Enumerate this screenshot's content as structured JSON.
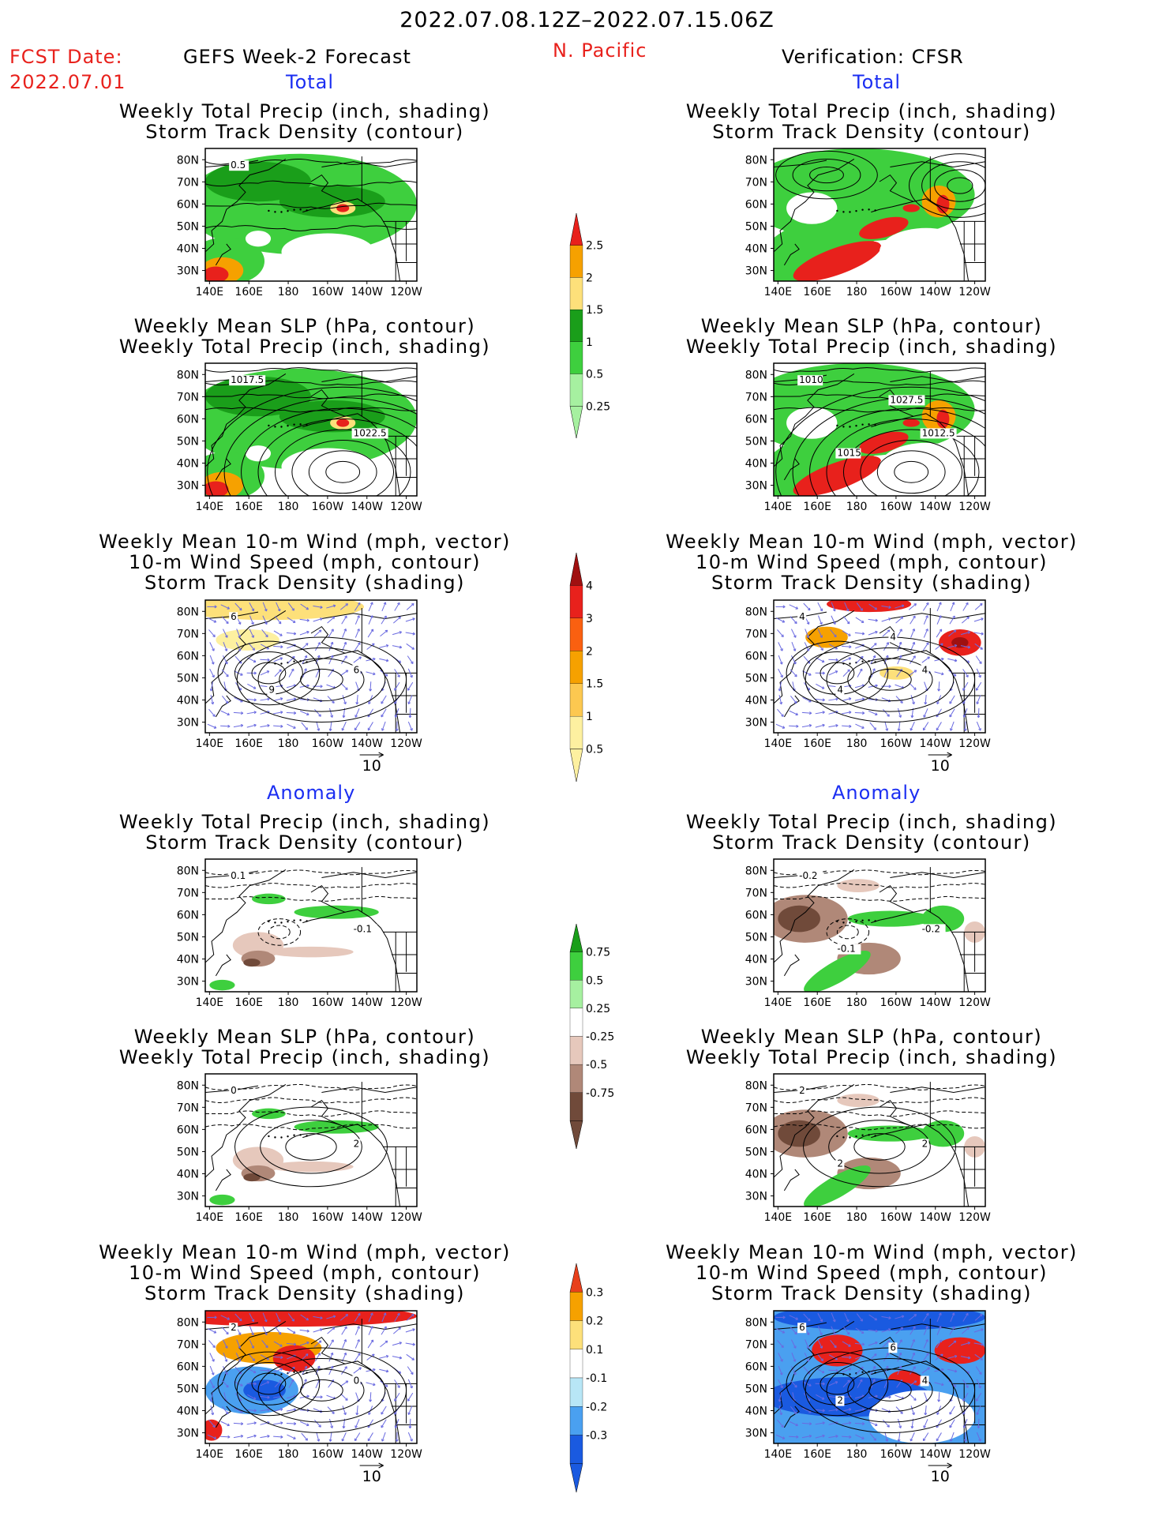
{
  "header": {
    "period": "2022.07.08.12Z–2022.07.15.06Z",
    "fcst_label": "FCST Date:",
    "fcst_date": "2022.07.01",
    "left_title": "GEFS Week-2 Forecast",
    "region": "N. Pacific",
    "right_title": "Verification: CFSR"
  },
  "sections": {
    "total": "Total",
    "anomaly": "Anomaly"
  },
  "panel_titles": {
    "precip_storm": [
      "Weekly Total Precip (inch, shading)",
      "Storm Track Density (contour)"
    ],
    "slp_precip": [
      "Weekly Mean SLP (hPa, contour)",
      "Weekly Total Precip (inch, shading)"
    ],
    "wind_storm": [
      "Weekly Mean 10-m Wind (mph, vector)",
      "10-m Wind Speed (mph, contour)",
      "Storm Track Density (shading)"
    ]
  },
  "axes": {
    "lat_ticks": [
      "80N",
      "70N",
      "60N",
      "50N",
      "40N",
      "30N"
    ],
    "lon_ticks": [
      "140E",
      "160E",
      "180",
      "160W",
      "140W",
      "120W"
    ]
  },
  "vector_ref": "10",
  "contour_labels": {
    "l1": [
      "0.5"
    ],
    "l2": [
      "1017.5",
      "1022.5"
    ],
    "r2": [
      "1010",
      "1012.5",
      "1015",
      "1027.5"
    ],
    "l3": [
      "6",
      "6",
      "9"
    ],
    "r3": [
      "4",
      "4",
      "4",
      "4"
    ],
    "l4": [
      "0.1",
      "-0.1"
    ],
    "r4": [
      "-0.2",
      "-0.2",
      "-0.1"
    ],
    "l5": [
      "0",
      "2"
    ],
    "r5": [
      "2",
      "2",
      "2"
    ],
    "l6": [
      "2",
      "0"
    ],
    "r6": [
      "6",
      "4",
      "2",
      "6"
    ]
  },
  "colorbars": {
    "precip_total": {
      "labels": [
        "2.5",
        "2",
        "1.5",
        "1",
        "0.5",
        "0.25"
      ],
      "colors": [
        "#e8211c",
        "#f6a100",
        "#fde07a",
        "#1a9e1a",
        "#3ecf3e",
        "#a6f0a0"
      ]
    },
    "storm_total": {
      "labels": [
        "4",
        "3",
        "2",
        "1.5",
        "1",
        "0.5"
      ],
      "colors": [
        "#a01010",
        "#e8211c",
        "#fa6010",
        "#f6a100",
        "#fcc850",
        "#fdf0a0"
      ]
    },
    "precip_anom": {
      "labels": [
        "0.75",
        "0.5",
        "0.25",
        "-0.25",
        "-0.5",
        "-0.75"
      ],
      "colors": [
        "#1a9e1a",
        "#3ecf3e",
        "#a6f0a0",
        "#ffffff",
        "#e6c8bc",
        "#b08878",
        "#704a3a"
      ]
    },
    "storm_anom": {
      "labels": [
        "0.3",
        "0.2",
        "0.1",
        "-0.1",
        "-0.2",
        "-0.3"
      ],
      "colors": [
        "#e8401c",
        "#f6a100",
        "#fde07a",
        "#ffffff",
        "#b8e6f6",
        "#4aa0f0",
        "#1a5ae0"
      ]
    }
  },
  "colors": {
    "green_light": "#a6f0a0",
    "green_mid": "#3ecf3e",
    "green_dark": "#1a9e1a",
    "yellow": "#fde07a",
    "orange": "#f6a100",
    "red": "#e8211c",
    "brown_light": "#e6c8bc",
    "brown_mid": "#b08878",
    "brown_dark": "#704a3a",
    "blue_light": "#b8e6f6",
    "blue_mid": "#4aa0f0",
    "blue_dark": "#1a5ae0",
    "vector": "#6a6ae0"
  }
}
